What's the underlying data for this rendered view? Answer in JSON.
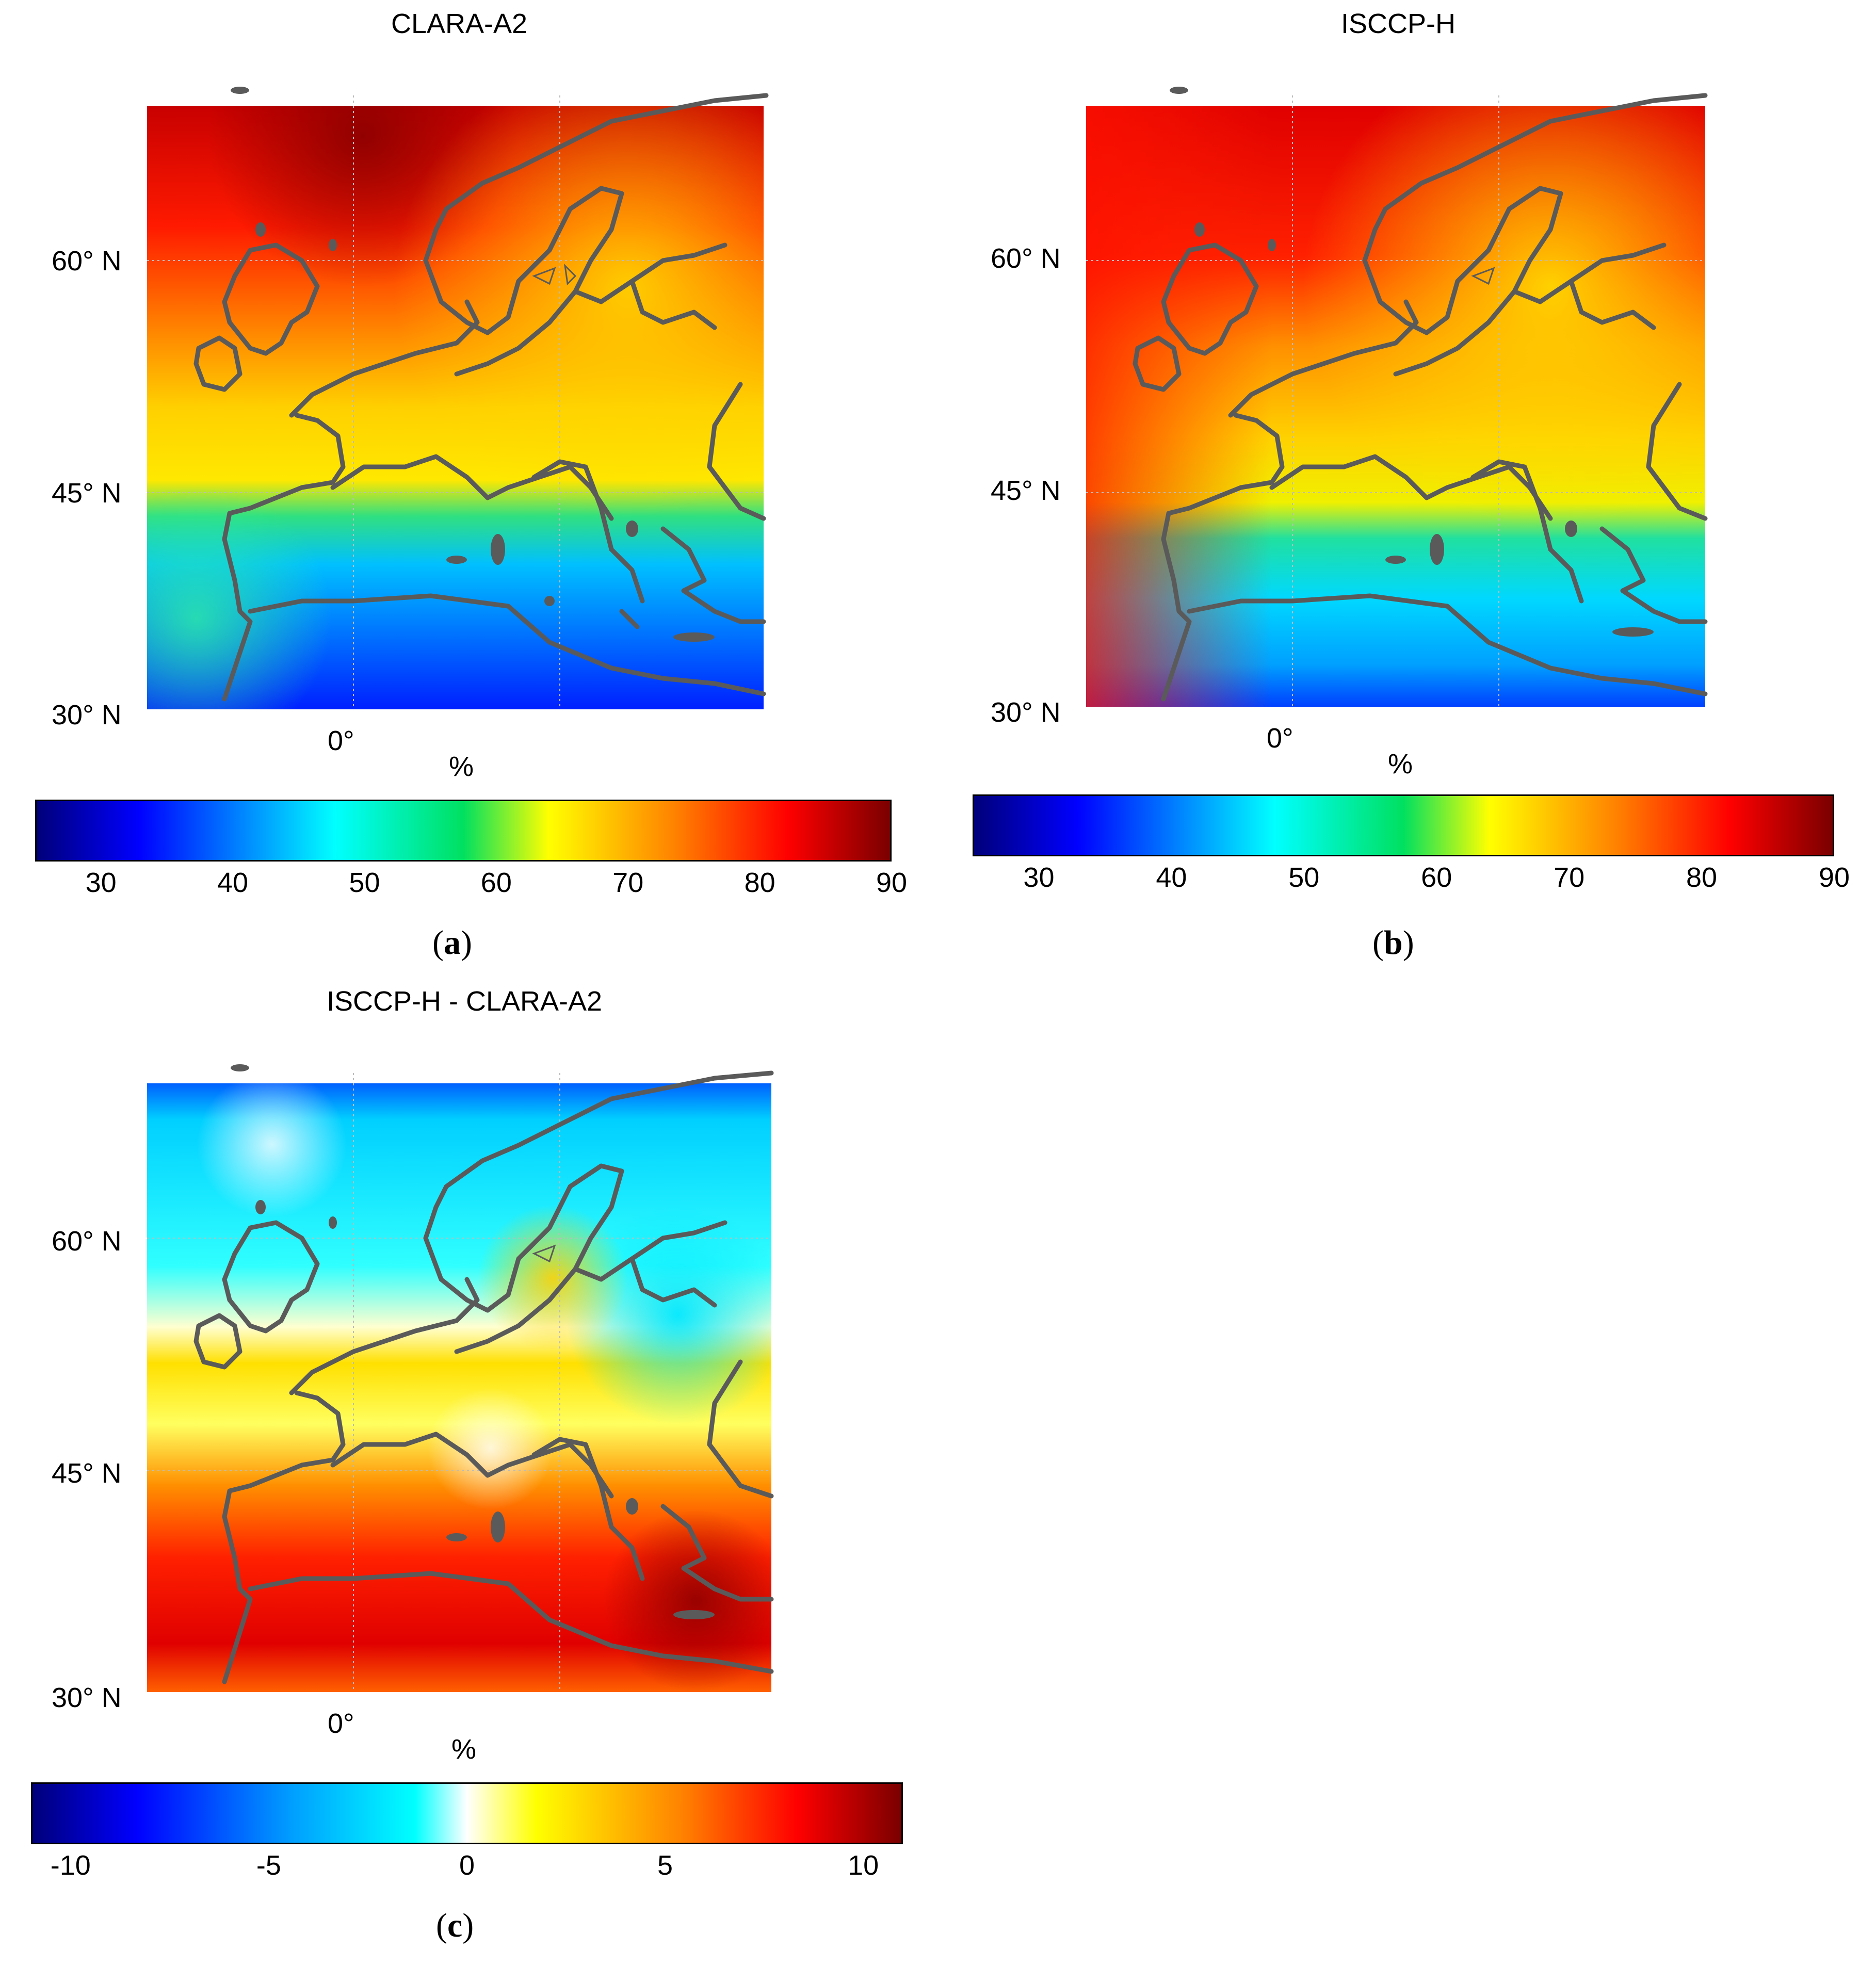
{
  "panels": [
    {
      "id": "a",
      "title": "CLARA-A2",
      "lat_labels": [
        "60° N",
        "45° N",
        "30° N"
      ],
      "lon_label": "0°",
      "unit": "%",
      "caption_letter": "a",
      "colorbar": {
        "ticks": [
          "30",
          "40",
          "50",
          "60",
          "70",
          "80",
          "90"
        ],
        "min": 25,
        "max": 90
      }
    },
    {
      "id": "b",
      "title": "ISCCP-H",
      "lat_labels": [
        "60° N",
        "45° N",
        "30° N"
      ],
      "lon_label": "0°",
      "unit": "%",
      "caption_letter": "b",
      "colorbar": {
        "ticks": [
          "30",
          "40",
          "50",
          "60",
          "70",
          "80",
          "90"
        ],
        "min": 25,
        "max": 90
      }
    },
    {
      "id": "c",
      "title": "ISCCP-H - CLARA-A2",
      "lat_labels": [
        "60° N",
        "45° N",
        "30° N"
      ],
      "lon_label": "0°",
      "unit": "%",
      "caption_letter": "c",
      "colorbar": {
        "ticks": [
          "-10",
          "-5",
          "0",
          "5",
          "10"
        ],
        "min": -11,
        "max": 11
      }
    }
  ],
  "colors": {
    "coastline": "#5a5a5a",
    "dark_red": "#7a0000",
    "red": "#ff0000",
    "orange": "#ff8000",
    "yellow": "#ffff00",
    "green": "#00e060",
    "cyan": "#00ffff",
    "light_blue": "#00a0ff",
    "blue": "#0000ff",
    "dark_blue": "#00007a",
    "white": "#ffffff"
  }
}
